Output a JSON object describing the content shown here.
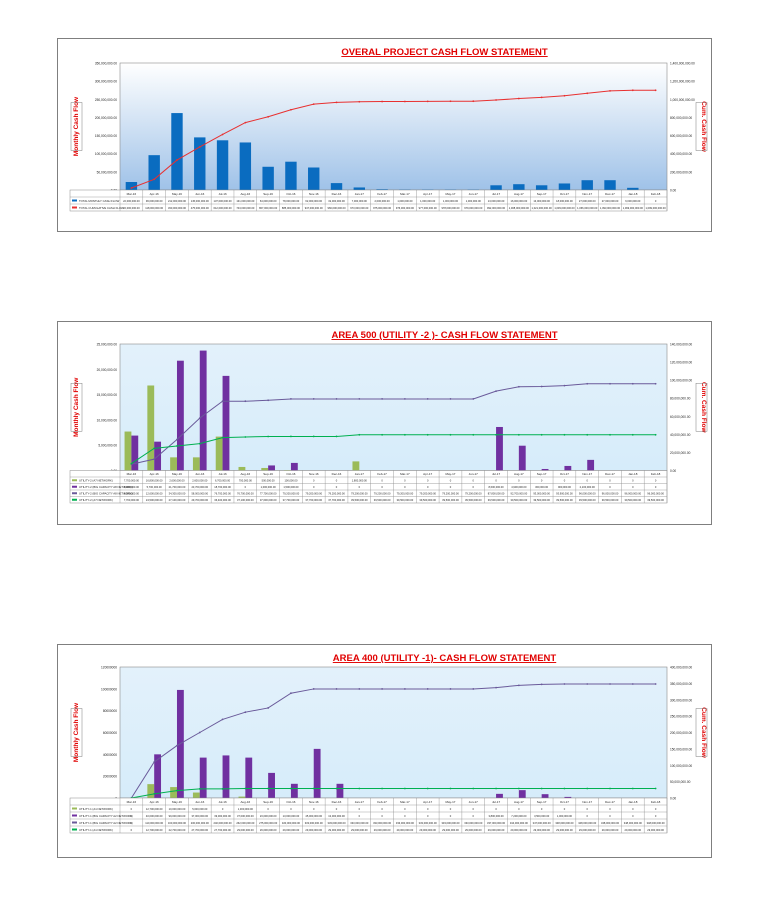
{
  "chart_data": [
    {
      "type": "bar",
      "title": "OVERAL PROJECT CASH FLOW STATEMENT",
      "ylabel": "Monthly Cash Flow",
      "y2label": "Cum. Cash Flow",
      "ylim": [
        0,
        350000000
      ],
      "y2lim": [
        0,
        1400000000
      ],
      "yticks": [
        "0.00",
        "50,000,000.00",
        "100,000,000.00",
        "150,000,000.00",
        "200,000,000.00",
        "250,000,000.00",
        "300,000,000.00",
        "350,000,000.00"
      ],
      "y2ticks": [
        "0.00",
        "200,000,000.00",
        "400,000,000.00",
        "600,000,000.00",
        "800,000,000.00",
        "1,000,000,000.00",
        "1,200,000,000.00",
        "1,400,000,000.00"
      ],
      "categories": [
        "Mar-16",
        "Apr-16",
        "May-16",
        "Jun-16",
        "Jul-16",
        "Aug-16",
        "Sep-16",
        "Oct-16",
        "Nov-16",
        "Dec-16",
        "Jan-17",
        "Feb-17",
        "Mar-17",
        "Apr-17",
        "May-17",
        "Jun-17",
        "Jul-17",
        "Aug-17",
        "Sep-17",
        "Oct-17",
        "Nov-17",
        "Dec-17",
        "Jan-18",
        "Feb-18"
      ],
      "series": [
        {
          "name": "TOTAL MONTHLY CASH FLOW",
          "kind": "bar",
          "axis": "left",
          "color": "#0a6cc0",
          "values": [
            22000000,
            96000000,
            212000000,
            145000000,
            137000000,
            131000000,
            64000000,
            78000000,
            62000000,
            19000000,
            7000000,
            2000000,
            1000000,
            1000000,
            1000000,
            1000000,
            13000000,
            16000000,
            13000000,
            18000000,
            27000000,
            27000000,
            6000000,
            0
          ]
        },
        {
          "name": "TOTAL CUMULATIVE CASH FLOW",
          "kind": "line",
          "axis": "right",
          "color": "#e83030",
          "values": [
            22000000,
            118000000,
            330000000,
            475000000,
            612000000,
            743000000,
            807000000,
            885000000,
            947000000,
            966000000,
            973000000,
            975000000,
            976000000,
            977000000,
            978000000,
            979000000,
            992000000,
            1008000000,
            1021000000,
            1039000000,
            1066000000,
            1093000000,
            1099000000,
            1099000000
          ]
        }
      ],
      "table_labels": [
        "TOTAL MONTHLY CASH FLOW",
        "TOTAL CUMULATIVE CASH FLOW"
      ]
    },
    {
      "type": "bar",
      "title": "AREA 500 (UTILITY -2 )- CASH FLOW STATEMENT",
      "ylabel": "Monthly Cash Flow",
      "y2label": "Cum. Cash Flow",
      "ylim": [
        0,
        25000000
      ],
      "y2lim": [
        0,
        140000000
      ],
      "yticks": [
        "0.00",
        "5,000,000.00",
        "10,000,000.00",
        "15,000,000.00",
        "20,000,000.00",
        "25,000,000.00"
      ],
      "y2ticks": [
        "0.00",
        "20,000,000.00",
        "40,000,000.00",
        "60,000,000.00",
        "80,000,000.00",
        "100,000,000.00",
        "120,000,000.00",
        "140,000,000.00"
      ],
      "categories": [
        "Mar-16",
        "Apr-16",
        "May-16",
        "Jun-16",
        "Jul-16",
        "Aug-16",
        "Sep-16",
        "Oct-16",
        "Nov-16",
        "Dec-16",
        "Jan-17",
        "Feb-17",
        "Mar-17",
        "Apr-17",
        "May-17",
        "Jun-17",
        "Jul-17",
        "Aug-17",
        "Sep-17",
        "Oct-17",
        "Nov-17",
        "Dec-17",
        "Jan-18",
        "Feb-18"
      ],
      "series": [
        {
          "name": "UTILITY-2 (A7 NETWORK)",
          "kind": "bar",
          "axis": "left",
          "color": "#9bbb59",
          "values": [
            7700000,
            16800000,
            2600000,
            2600000,
            6700000,
            700000,
            500000,
            100000,
            0,
            0,
            1800000,
            0,
            0,
            0,
            0,
            0,
            0,
            0,
            0,
            0,
            0,
            0,
            0,
            0
          ]
        },
        {
          "name": "UTILITY-2 (BIG CAPACITY A8 NETWORK)",
          "kind": "bar",
          "axis": "left",
          "color": "#7030a0",
          "values": [
            6900000,
            5700000,
            21700000,
            23700000,
            18700000,
            0,
            1000000,
            1500000,
            0,
            0,
            0,
            0,
            0,
            0,
            0,
            0,
            8600000,
            4900000,
            300000,
            900000,
            2100000,
            0,
            0,
            0
          ]
        },
        {
          "name": "UTILITY-2 (BIG CAPACITY A8 NETWORK) CUM",
          "kind": "line",
          "axis": "right",
          "color": "#6a5a9a",
          "values": [
            6900000,
            12600000,
            34300000,
            58000000,
            76700000,
            76700000,
            77700000,
            79200000,
            79200000,
            79200000,
            79200000,
            79200000,
            79200000,
            79200000,
            79200000,
            79200000,
            87800000,
            92700000,
            93000000,
            93900000,
            96000000,
            96000000,
            96000000,
            96000000
          ]
        },
        {
          "name": "UTILITY-2 (A7 NETWORK) CUM",
          "kind": "line",
          "axis": "right",
          "color": "#00b050",
          "values": [
            7700000,
            24500000,
            27100000,
            29700000,
            36400000,
            37100000,
            37600000,
            37700000,
            37700000,
            37700000,
            39500000,
            39500000,
            39500000,
            39500000,
            39500000,
            39500000,
            39500000,
            39500000,
            39500000,
            39500000,
            39500000,
            39500000,
            39500000,
            39500000
          ]
        }
      ],
      "table_labels": [
        "UTILITY-2 (A7 NETWORK)",
        "UTILITY-2 (BIG CAPACITY A8 NETWORK)",
        "UTILITY-2 (BIG CAPACITY A8 NETWORK)",
        "UTILITY-2 (A7 NETWORK)"
      ]
    },
    {
      "type": "bar",
      "title": "AREA 400 (UTILITY -1)- CASH FLOW STATEMENT",
      "ylabel": "Monthly Cash Flow",
      "y2label": "Cum. Cash Flow",
      "ylim": [
        0,
        120000000
      ],
      "y2lim": [
        0,
        400000000
      ],
      "yticks": [
        "0",
        "20000000",
        "40000000",
        "60000000",
        "80000000",
        "100000000",
        "120000000"
      ],
      "y2ticks": [
        "0.00",
        "50,000,000.00",
        "100,000,000.00",
        "150,000,000.00",
        "200,000,000.00",
        "250,000,000.00",
        "300,000,000.00",
        "350,000,000.00",
        "400,000,000.00"
      ],
      "categories": [
        "Mar-16",
        "Apr-16",
        "May-16",
        "Jun-16",
        "Jul-16",
        "Aug-16",
        "Sep-16",
        "Oct-16",
        "Nov-16",
        "Dec-16",
        "Jan-17",
        "Feb-17",
        "Mar-17",
        "Apr-17",
        "May-17",
        "Jun-17",
        "Jul-17",
        "Aug-17",
        "Sep-17",
        "Oct-17",
        "Nov-17",
        "Dec-17",
        "Jan-18",
        "Feb-18"
      ],
      "series": [
        {
          "name": "UTILITY-1 (A1 NETWORK)",
          "kind": "bar",
          "axis": "left",
          "color": "#9bbb59",
          "values": [
            0,
            12700000,
            10000000,
            5000000,
            0,
            1300000,
            0,
            0,
            0,
            0,
            0,
            0,
            0,
            0,
            0,
            0,
            0,
            0,
            0,
            0,
            0,
            0,
            0,
            0
          ]
        },
        {
          "name": "UTILITY-1 (BIG CAPACITY A2 NETWORK)",
          "kind": "bar",
          "axis": "left",
          "color": "#7030a0",
          "values": [
            0,
            40000000,
            99000000,
            37000000,
            39000000,
            37000000,
            23000000,
            13000000,
            45000000,
            13000000,
            0,
            0,
            0,
            0,
            0,
            0,
            3800000,
            7200000,
            3500000,
            1000000,
            0,
            0,
            0,
            0
          ]
        },
        {
          "name": "UTILITY-1 (BIG CAPACITY A2 NETWORK) CUM",
          "kind": "line",
          "axis": "right",
          "color": "#6a5a9a",
          "values": [
            0,
            110000000,
            160000000,
            200000000,
            240000000,
            262000000,
            275000000,
            320000000,
            333000000,
            333000000,
            333000000,
            333000000,
            333000000,
            333000000,
            333000000,
            333000000,
            337000000,
            344000000,
            347000000,
            348000000,
            348000000,
            348000000,
            348000000,
            348000000
          ]
        },
        {
          "name": "UTILITY-1 (A1 NETWORK) CUM",
          "kind": "line",
          "axis": "right",
          "color": "#00b050",
          "values": [
            0,
            12700000,
            22700000,
            27700000,
            27700000,
            29000000,
            29000000,
            29000000,
            29000000,
            29000000,
            29000000,
            29000000,
            29000000,
            29000000,
            29000000,
            29000000,
            29000000,
            29000000,
            29000000,
            29000000,
            29000000,
            29000000,
            29000000,
            29000000
          ]
        }
      ],
      "table_labels": [
        "UTILITY-1 (A1 NETWORK)",
        "UTILITY-1 (BIG CAPACITY A2 NETWORK)",
        "UTILITY-1 (BIG CAPACITY A2 NETWORK)",
        "UTILITY-1 (A1 NETWORK)"
      ]
    }
  ]
}
